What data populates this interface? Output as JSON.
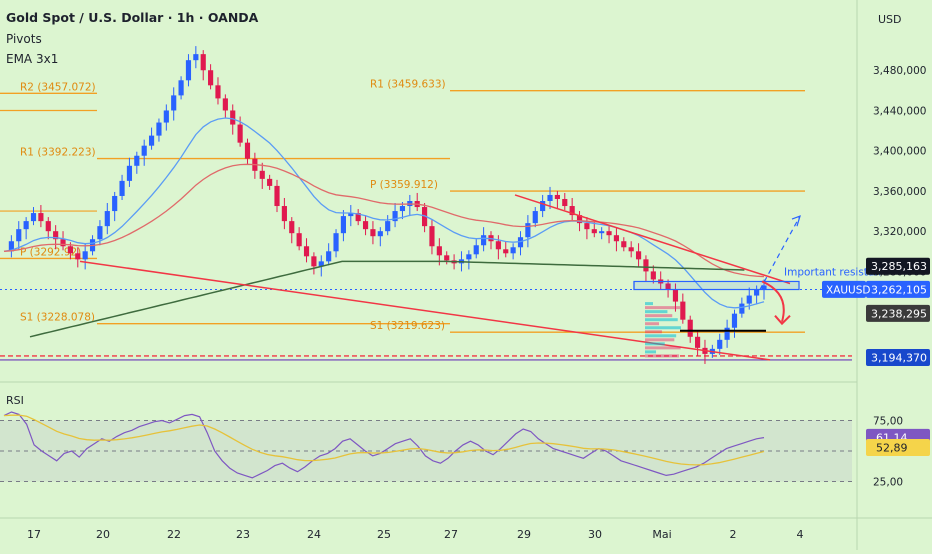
{
  "header": {
    "title": "Gold Spot / U.S. Dollar · 1h · OANDA",
    "indicator1": "Pivots",
    "indicator2": "EMA 3x1",
    "currency": "USD"
  },
  "colors": {
    "background": "#dcf5d0",
    "pivot_line": "#f2a024",
    "pivot_label": "#e08a10",
    "bull_candle": "#2962ff",
    "bear_candle": "#e0194f",
    "trendline": "#f23645",
    "ema_blue": "#5b9cf5",
    "ema_red": "#e06a6a",
    "ema_dark": "#3e6b3e",
    "rsi_line": "#7e57c2",
    "rsi_ma": "#e6c23a",
    "forecast": "#2962ff",
    "arrow": "#f23645"
  },
  "chart_data": {
    "type": "candlestick",
    "symbol": "XAUUSD",
    "x_tick_labels": [
      "17",
      "20",
      "22",
      "23",
      "24",
      "25",
      "27",
      "29",
      "30",
      "Mai",
      "2",
      "4"
    ],
    "ylim": [
      3180,
      3520
    ],
    "y_tick_labels": [
      "3,480,000",
      "3,440,000",
      "3,400,000",
      "3,360,000",
      "3,320,000",
      "3,280,000"
    ],
    "y_tick_values": [
      3480,
      3440,
      3400,
      3360,
      3320,
      3280
    ],
    "close_series": [
      3300,
      3310,
      3322,
      3330,
      3338,
      3330,
      3320,
      3312,
      3305,
      3298,
      3292,
      3300,
      3312,
      3325,
      3340,
      3355,
      3370,
      3385,
      3395,
      3405,
      3415,
      3428,
      3440,
      3455,
      3470,
      3490,
      3496,
      3480,
      3465,
      3452,
      3440,
      3426,
      3408,
      3392,
      3380,
      3372,
      3365,
      3345,
      3330,
      3318,
      3305,
      3295,
      3285,
      3290,
      3300,
      3318,
      3335,
      3338,
      3330,
      3322,
      3315,
      3320,
      3330,
      3340,
      3345,
      3350,
      3344,
      3325,
      3305,
      3296,
      3291,
      3288,
      3292,
      3297,
      3306,
      3316,
      3310,
      3302,
      3298,
      3304,
      3314,
      3328,
      3340,
      3350,
      3356,
      3352,
      3345,
      3336,
      3328,
      3322,
      3318,
      3320,
      3316,
      3310,
      3304,
      3300,
      3292,
      3280,
      3272,
      3268,
      3262,
      3250,
      3232,
      3215,
      3204,
      3198,
      3203,
      3212,
      3224,
      3238,
      3248,
      3256,
      3262,
      3266
    ],
    "pivot_levels": [
      {
        "label": "R2 (3457.072)",
        "value": 3457.072
      },
      {
        "label": "R1 (3392.223)",
        "value": 3392.223
      },
      {
        "label": "P (3292.92)",
        "value": 3292.92
      },
      {
        "label": "S1 (3228.078)",
        "value": 3228.078
      },
      {
        "label": "R1 (3459.633)",
        "value": 3459.633
      },
      {
        "label": "P (3359.912)",
        "value": 3359.912
      },
      {
        "label": "S1 (3219.623)",
        "value": 3219.623
      }
    ],
    "price_labels": [
      {
        "value": "3,285,163"
      },
      {
        "value": "3,262,105",
        "tag": "XAUUSD"
      },
      {
        "value": "3,238,295"
      },
      {
        "value": "3,194,370"
      }
    ],
    "annotations": [
      "Important resistan"
    ],
    "rsi": {
      "title": "RSI",
      "ylim": [
        0,
        100
      ],
      "y_tick_labels": [
        "75,00",
        "25,00"
      ],
      "y_tick_values": [
        75,
        25
      ],
      "current_value": "61,14",
      "ma_value": "52,89",
      "values": [
        79,
        82,
        80,
        72,
        55,
        50,
        46,
        42,
        48,
        50,
        45,
        52,
        56,
        60,
        58,
        62,
        65,
        67,
        70,
        72,
        74,
        75,
        73,
        76,
        79,
        80,
        78,
        65,
        50,
        42,
        36,
        32,
        30,
        28,
        31,
        34,
        38,
        40,
        36,
        33,
        37,
        42,
        46,
        48,
        52,
        58,
        60,
        55,
        50,
        46,
        48,
        52,
        56,
        58,
        60,
        54,
        46,
        42,
        40,
        44,
        50,
        55,
        58,
        55,
        50,
        47,
        52,
        58,
        64,
        68,
        66,
        60,
        56,
        52,
        50,
        48,
        46,
        44,
        48,
        52,
        50,
        46,
        42,
        40,
        38,
        36,
        34,
        32,
        30,
        31,
        33,
        35,
        37,
        40,
        44,
        48,
        52,
        54,
        56,
        58,
        60,
        61
      ]
    }
  }
}
